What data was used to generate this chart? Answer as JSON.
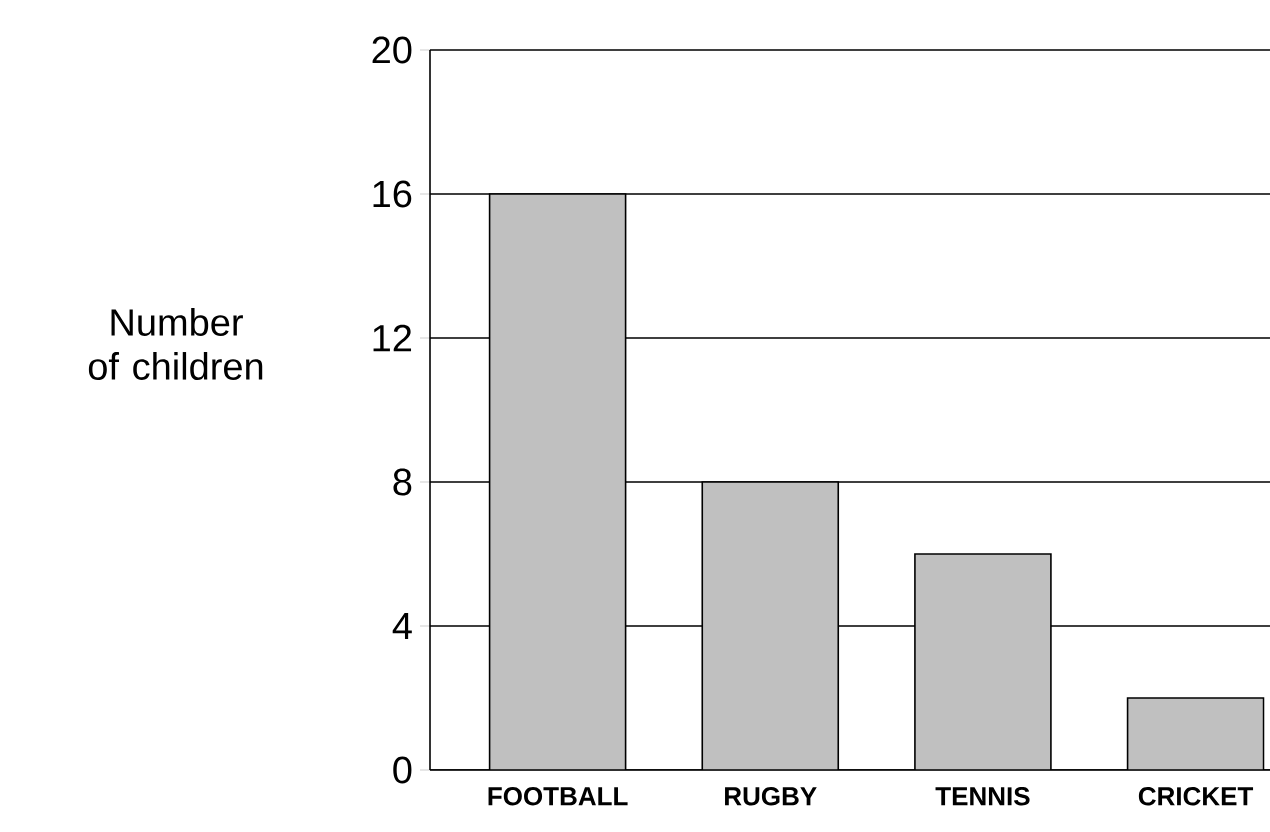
{
  "chart_data": {
    "type": "bar",
    "ylabel": "Number of children",
    "categories": [
      "FOOTBALL",
      "RUGBY",
      "TENNIS",
      "CRICKET"
    ],
    "values": [
      16,
      8,
      6,
      2
    ],
    "color": "#c0c0c0",
    "ylim": [
      0,
      20
    ],
    "yticks": [
      0,
      4,
      8,
      12,
      16,
      20
    ],
    "grid": "y"
  }
}
